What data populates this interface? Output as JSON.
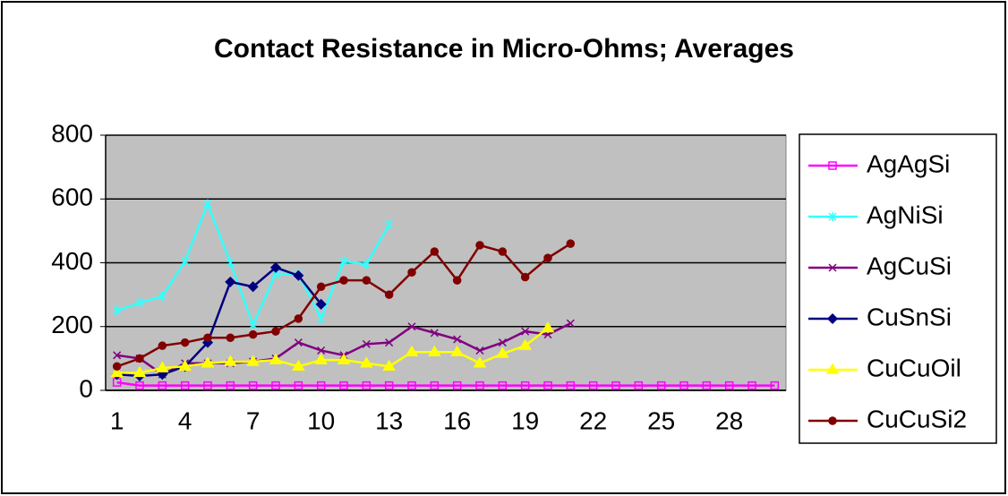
{
  "chart_data": {
    "type": "line",
    "title": "Contact Resistance in Micro-Ohms; Averages",
    "categories": [
      1,
      null,
      null,
      4,
      null,
      null,
      7,
      null,
      null,
      10,
      null,
      null,
      13,
      null,
      null,
      16,
      null,
      null,
      19,
      null,
      null,
      22,
      null,
      null,
      25,
      null,
      null,
      28,
      null,
      null
    ],
    "ylim": [
      0,
      800
    ],
    "yticks": [
      0,
      200,
      400,
      600,
      800
    ],
    "grid": true,
    "plot_background": "#c0c0c0",
    "legend": "right",
    "series": [
      {
        "name": "AgAgSi",
        "color": "#ff00ff",
        "marker": "square",
        "values": [
          25,
          15,
          15,
          15,
          15,
          15,
          15,
          15,
          15,
          15,
          15,
          15,
          15,
          15,
          15,
          15,
          15,
          15,
          15,
          15,
          15,
          15,
          15,
          15,
          15,
          15,
          15,
          15,
          15,
          15
        ]
      },
      {
        "name": "AgNiSi",
        "color": "#33ffff",
        "marker": "star",
        "values": [
          250,
          275,
          295,
          405,
          585,
          400,
          205,
          365,
          365,
          225,
          405,
          395,
          520,
          null,
          null,
          null,
          null,
          null,
          null,
          null,
          null,
          null,
          null,
          null,
          null,
          null,
          null,
          null,
          null,
          null
        ]
      },
      {
        "name": "AgCuSi",
        "color": "#800080",
        "marker": "x",
        "values": [
          110,
          100,
          50,
          85,
          85,
          85,
          90,
          100,
          150,
          125,
          110,
          145,
          150,
          200,
          180,
          160,
          125,
          150,
          185,
          175,
          210,
          null,
          null,
          null,
          null,
          null,
          null,
          null,
          null,
          null
        ]
      },
      {
        "name": "CuSnSi",
        "color": "#000080",
        "marker": "diamond",
        "values": [
          50,
          45,
          50,
          75,
          150,
          340,
          325,
          385,
          360,
          270,
          null,
          null,
          null,
          null,
          null,
          null,
          null,
          null,
          null,
          null,
          null,
          null,
          null,
          null,
          null,
          null,
          null,
          null,
          null,
          null
        ]
      },
      {
        "name": "CuCuOil",
        "color": "#ffff00",
        "marker": "triangle",
        "values": [
          55,
          55,
          70,
          75,
          85,
          90,
          90,
          95,
          75,
          95,
          95,
          85,
          75,
          120,
          120,
          120,
          85,
          115,
          140,
          195,
          null,
          null,
          null,
          null,
          null,
          null,
          null,
          null,
          null,
          null
        ]
      },
      {
        "name": "CuCuSi2",
        "color": "#800000",
        "marker": "circle",
        "values": [
          75,
          100,
          140,
          150,
          165,
          165,
          175,
          185,
          225,
          325,
          345,
          345,
          300,
          370,
          435,
          345,
          455,
          435,
          355,
          415,
          460,
          null,
          null,
          null,
          null,
          null,
          null,
          null,
          null,
          null
        ]
      }
    ]
  }
}
